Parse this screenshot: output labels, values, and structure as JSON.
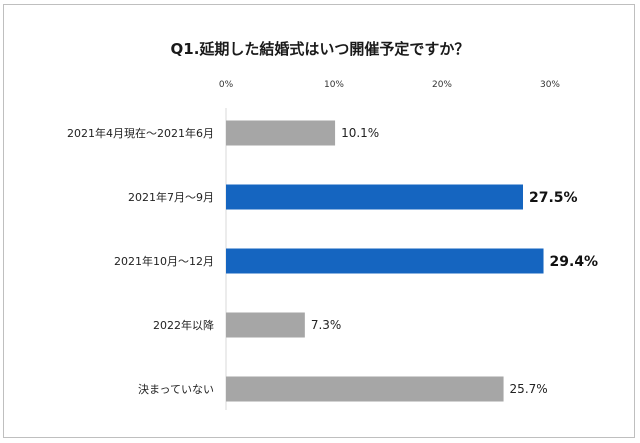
{
  "chart_data": {
    "type": "bar",
    "orientation": "horizontal",
    "title": "Q1.延期した結婚式はいつ開催予定ですか？",
    "categories": [
      "2021年4月現在～2021年6月",
      "2021年7月～9月",
      "2021年10月～12月",
      "2022年以降",
      "決まっていない"
    ],
    "values": [
      10.1,
      27.5,
      29.4,
      7.3,
      25.7
    ],
    "value_labels": [
      "10.1%",
      "27.5%",
      "29.4%",
      "7.3%",
      "25.7%"
    ],
    "highlighted": [
      false,
      true,
      true,
      false,
      false
    ],
    "xlim": [
      0,
      30
    ],
    "xticks": [
      "0%",
      "10%",
      "20%",
      "30%"
    ],
    "xtick_values": [
      0,
      10,
      20,
      30
    ],
    "grid": false,
    "colors": {
      "bar_default": "#a6a6a6",
      "bar_highlight": "#1565c0"
    }
  }
}
